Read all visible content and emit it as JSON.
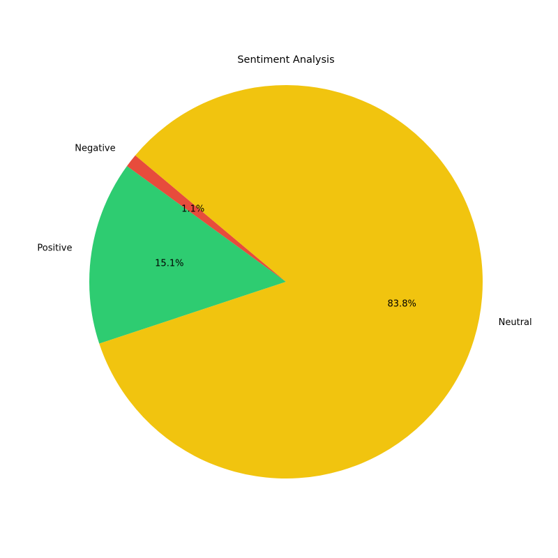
{
  "chart_data": {
    "type": "pie",
    "title": "Sentiment Analysis",
    "start_angle_deg": 140,
    "direction": "counterclockwise",
    "slices": [
      {
        "label": "Negative",
        "value": 1.1,
        "pct_label": "1.1%",
        "color": "#e74c3c"
      },
      {
        "label": "Positive",
        "value": 15.1,
        "pct_label": "15.1%",
        "color": "#2ecc71"
      },
      {
        "label": "Neutral",
        "value": 83.8,
        "pct_label": "83.8%",
        "color": "#f1c40f"
      }
    ]
  }
}
